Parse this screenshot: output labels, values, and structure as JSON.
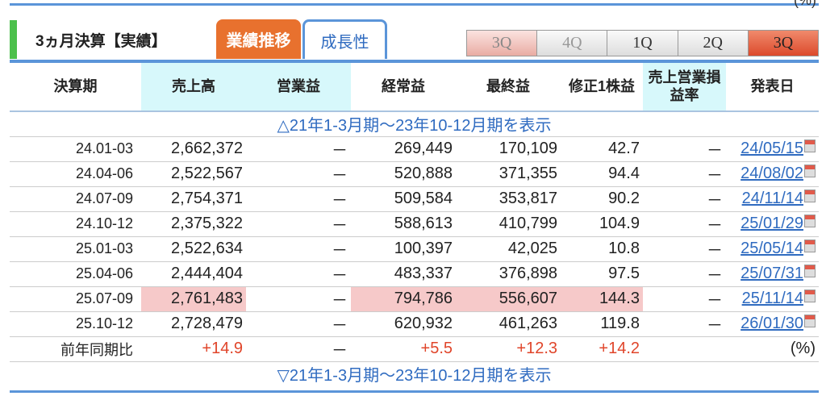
{
  "section": {
    "title": "3ヵ月決算【実績】",
    "tabs": [
      {
        "label": "業績推移",
        "active": true
      },
      {
        "label": "成長性",
        "active": false
      }
    ]
  },
  "quarters": [
    {
      "label": "3Q",
      "state": "past"
    },
    {
      "label": "4Q",
      "state": "dim"
    },
    {
      "label": "1Q",
      "state": "normal"
    },
    {
      "label": "2Q",
      "state": "normal"
    },
    {
      "label": "3Q",
      "state": "active"
    }
  ],
  "top_paren": "(%)",
  "headers": [
    "決算期",
    "売上高",
    "営業益",
    "経常益",
    "最終益",
    "修正1株益",
    "売上営業損益率",
    "発表日"
  ],
  "show_earlier": "△21年1-3月期～23年10-12月期を表示",
  "show_earlier_bottom": "▽21年1-3月期～23年10-12月期を表示",
  "rows": [
    [
      "24.01-03",
      "2,662,372",
      "－",
      "269,449",
      "170,109",
      "42.7",
      "－",
      "24/05/15"
    ],
    [
      "24.04-06",
      "2,522,567",
      "－",
      "520,888",
      "371,355",
      "94.4",
      "－",
      "24/08/02"
    ],
    [
      "24.07-09",
      "2,754,371",
      "－",
      "509,584",
      "353,817",
      "90.2",
      "－",
      "24/11/14"
    ],
    [
      "24.10-12",
      "2,375,322",
      "－",
      "588,613",
      "410,799",
      "104.9",
      "－",
      "25/01/29"
    ],
    [
      "25.01-03",
      "2,522,634",
      "－",
      "100,397",
      "42,025",
      "10.8",
      "－",
      "25/05/14"
    ],
    [
      "25.04-06",
      "2,444,404",
      "－",
      "483,337",
      "376,898",
      "97.5",
      "－",
      "25/07/31"
    ],
    [
      "25.07-09",
      "2,761,483",
      "－",
      "794,786",
      "556,607",
      "144.3",
      "－",
      "25/11/14"
    ],
    [
      "25.10-12",
      "2,728,479",
      "－",
      "620,932",
      "461,263",
      "119.8",
      "－",
      "26/01/30"
    ]
  ],
  "yoy": {
    "label": "前年同期比",
    "sales": "+14.9",
    "op": "－",
    "ordinary": "+5.5",
    "net": "+12.3",
    "eps": "+14.2",
    "unit": "(%)"
  },
  "colors": {
    "accent": "#5b95d9",
    "tab_active": "#e8712e",
    "highlight": "#f6c9c9",
    "header_highlight": "#d7f8fb",
    "positive": "#e0452a"
  }
}
